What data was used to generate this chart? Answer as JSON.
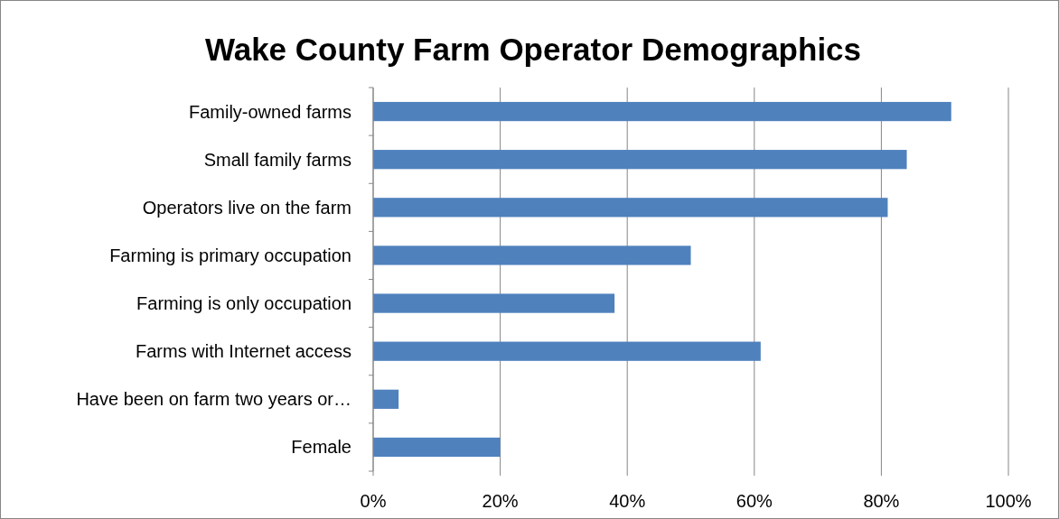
{
  "chart_data": {
    "type": "bar",
    "orientation": "horizontal",
    "title": "Wake County Farm Operator Demographics",
    "categories": [
      "Family-owned farms",
      "Small family farms",
      "Operators live on the farm",
      "Farming is primary occupation",
      "Farming is only occupation",
      "Farms with Internet access",
      "Have been on farm two years or…",
      "Female"
    ],
    "values": [
      91,
      84,
      81,
      50,
      38,
      61,
      4,
      20
    ],
    "color": "#4f81bd",
    "xlim": [
      0,
      100
    ],
    "xticks": [
      {
        "value": 0,
        "label": "0%"
      },
      {
        "value": 20,
        "label": "20%"
      },
      {
        "value": 40,
        "label": "40%"
      },
      {
        "value": 60,
        "label": "60%"
      },
      {
        "value": 80,
        "label": "80%"
      },
      {
        "value": 100,
        "label": "100%"
      }
    ],
    "grid": "x"
  }
}
